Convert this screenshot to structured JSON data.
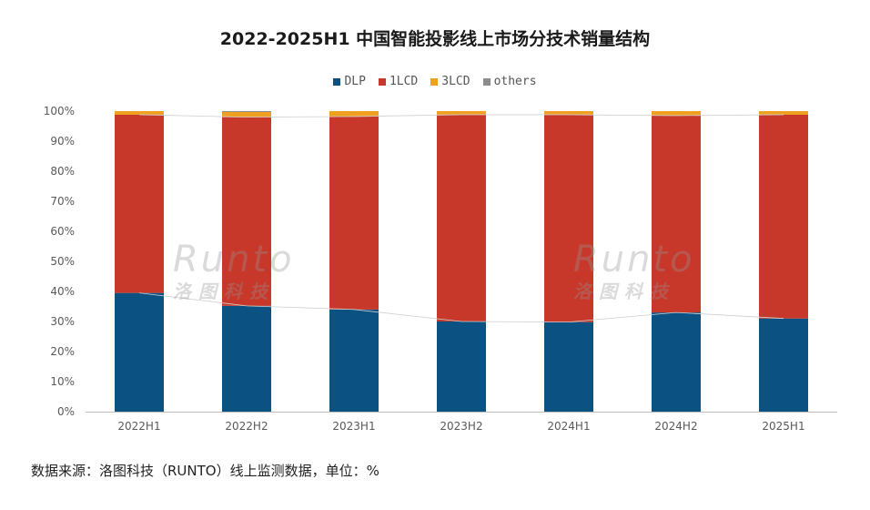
{
  "chart_data": {
    "type": "bar",
    "stacked": true,
    "title": "2022-2025H1 中国智能投影线上市场分技术销量结构",
    "categories": [
      "2022H1",
      "2022H2",
      "2023H1",
      "2023H2",
      "2024H1",
      "2024H2",
      "2025H1"
    ],
    "series": [
      {
        "name": "DLP",
        "color": "#0b5282",
        "values": [
          39.5,
          35.2,
          34.0,
          30.0,
          29.8,
          33.0,
          31.0
        ]
      },
      {
        "name": "1LCD",
        "color": "#c8382a",
        "values": [
          59.3,
          62.8,
          64.2,
          68.8,
          69.0,
          65.5,
          67.8
        ]
      },
      {
        "name": "3LCD",
        "color": "#f0a020",
        "values": [
          1.2,
          1.7,
          1.8,
          1.2,
          1.2,
          1.5,
          1.2
        ]
      },
      {
        "name": "others",
        "color": "#8c8c8c",
        "values": [
          0.0,
          0.3,
          0.0,
          0.0,
          0.0,
          0.0,
          0.0
        ]
      }
    ],
    "yticks": [
      "0%",
      "10%",
      "20%",
      "30%",
      "40%",
      "50%",
      "60%",
      "70%",
      "80%",
      "90%",
      "100%"
    ],
    "ylim": [
      0,
      100
    ],
    "legend_position": "top-center",
    "grid": false
  },
  "source_note": "数据来源：洛图科技（RUNTO）线上监测数据，单位：%",
  "watermark": {
    "brand": "Runto",
    "cn": "洛图科技"
  }
}
